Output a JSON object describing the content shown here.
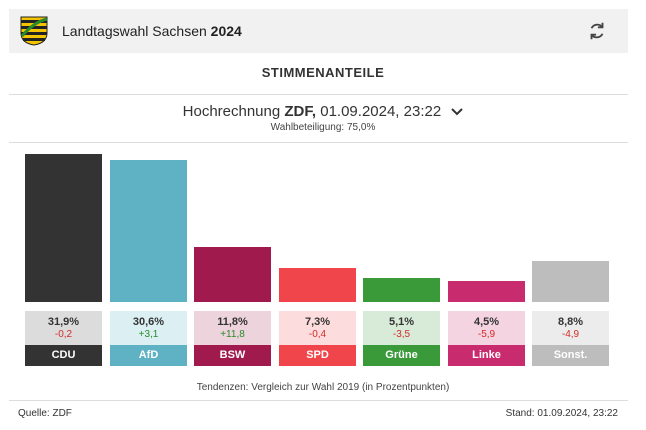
{
  "header": {
    "title_prefix": "Landtagswahl Sachsen",
    "title_year": "2024"
  },
  "section_title": "STIMMENANTEILE",
  "poll": {
    "label_prefix": "Hochrechnung",
    "source": "ZDF,",
    "datetime": "01.09.2024, 23:22",
    "turnout": "Wahlbeteiligung: 75,0%"
  },
  "footnote": "Tendenzen: Vergleich zur Wahl 2019 (in Prozentpunkten)",
  "footer": {
    "source": "Quelle: ZDF",
    "stand": "Stand: 01.09.2024, 23:22"
  },
  "colors": {
    "positive": "#2a8a2a",
    "negative": "#d42a2a"
  },
  "chart_data": {
    "type": "bar",
    "categories": [
      "CDU",
      "AfD",
      "BSW",
      "SPD",
      "Grüne",
      "Linke",
      "Sonst."
    ],
    "values": [
      31.9,
      30.6,
      11.8,
      7.3,
      5.1,
      4.5,
      8.8
    ],
    "value_labels": [
      "31,9%",
      "30,6%",
      "11,8%",
      "7,3%",
      "5,1%",
      "4,5%",
      "8,8%"
    ],
    "changes": [
      -0.2,
      3.1,
      11.8,
      -0.4,
      -3.5,
      -5.9,
      -4.9
    ],
    "change_labels": [
      "-0,2",
      "+3,1",
      "+11,8",
      "-0,4",
      "-3,5",
      "-5,9",
      "-4,9"
    ],
    "colors": [
      "#333333",
      "#5fb2c4",
      "#a01a4d",
      "#f0454a",
      "#3a9a3a",
      "#c82b6e",
      "#bdbdbd"
    ],
    "box_colors": [
      "#dcdcdc",
      "#dcf0f3",
      "#ecd3dc",
      "#fcdcdc",
      "#d8ebd8",
      "#f4d4e0",
      "#ececec"
    ],
    "ylim": [
      0,
      31.9
    ]
  }
}
